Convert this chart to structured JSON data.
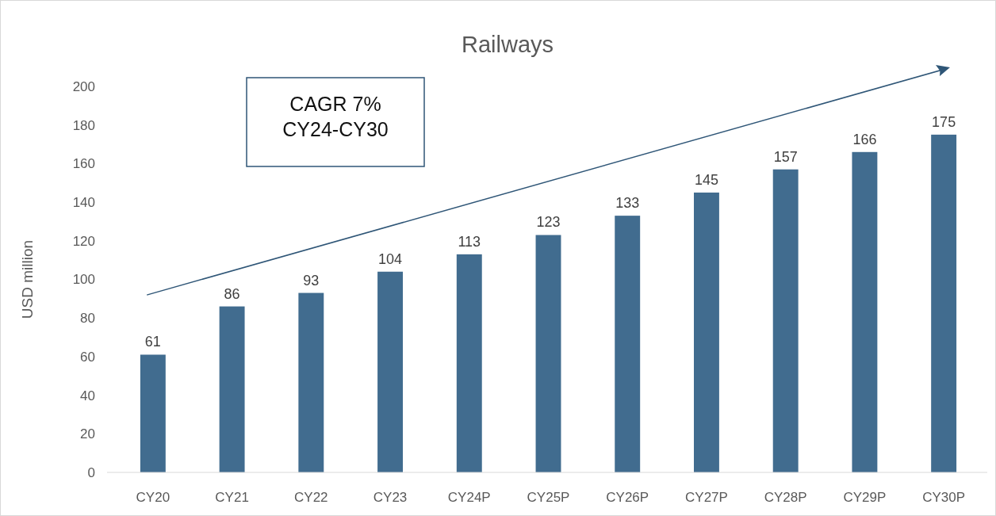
{
  "chart_data": {
    "type": "bar",
    "title": "Railways",
    "ylabel": "USD million",
    "categories": [
      "CY20",
      "CY21",
      "CY22",
      "CY23",
      "CY24P",
      "CY25P",
      "CY26P",
      "CY27P",
      "CY28P",
      "CY29P",
      "CY30P"
    ],
    "values": [
      61,
      86,
      93,
      104,
      113,
      123,
      133,
      145,
      157,
      166,
      175
    ],
    "color": "#416c8f",
    "ylim": [
      0,
      200
    ],
    "yticks": [
      0,
      20,
      40,
      60,
      80,
      100,
      120,
      140,
      160,
      180,
      200
    ],
    "grid": false,
    "data_labels": true,
    "annotations": [
      "CAGR 7%",
      "CY24-CY30"
    ]
  }
}
